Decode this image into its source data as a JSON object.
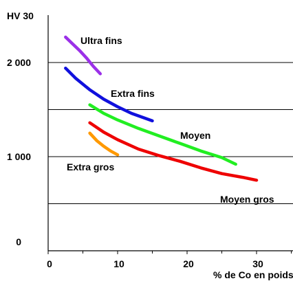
{
  "chart_data": {
    "type": "line",
    "title": "",
    "ylabel": "HV 30",
    "xlabel": "% de Co en poids",
    "xlim": [
      0,
      35
    ],
    "ylim": [
      0,
      2500
    ],
    "x_ticks": [
      {
        "value": 0,
        "label": "0"
      },
      {
        "value": 10,
        "label": "10"
      },
      {
        "value": 20,
        "label": "20"
      },
      {
        "value": 30,
        "label": "30"
      }
    ],
    "y_ticks": [
      {
        "value": 0,
        "label": "0"
      },
      {
        "value": 1000,
        "label": "1 000"
      },
      {
        "value": 2000,
        "label": "2 000"
      }
    ],
    "gridlines_y": [
      500,
      1000,
      1500,
      2000
    ],
    "grid": "horizontal",
    "legend": "none",
    "series": [
      {
        "name": "Ultra fins",
        "color": "#9b30e8",
        "points": [
          [
            2.5,
            2270
          ],
          [
            3.5,
            2200
          ],
          [
            4.5,
            2130
          ],
          [
            5.5,
            2050
          ],
          [
            6.5,
            1960
          ],
          [
            7.5,
            1880
          ]
        ]
      },
      {
        "name": "Extra fins",
        "color": "#1010dd",
        "points": [
          [
            2.5,
            1940
          ],
          [
            4,
            1830
          ],
          [
            6,
            1710
          ],
          [
            8,
            1610
          ],
          [
            10,
            1530
          ],
          [
            12,
            1460
          ],
          [
            15,
            1380
          ]
        ]
      },
      {
        "name": "Moyen",
        "color": "#22ee22",
        "points": [
          [
            6,
            1550
          ],
          [
            8,
            1460
          ],
          [
            10,
            1390
          ],
          [
            13,
            1300
          ],
          [
            16,
            1220
          ],
          [
            19,
            1140
          ],
          [
            22,
            1060
          ],
          [
            25,
            990
          ],
          [
            27,
            920
          ]
        ]
      },
      {
        "name": "Extra gros",
        "color": "#ff9900",
        "points": [
          [
            6,
            1250
          ],
          [
            7,
            1170
          ],
          [
            8,
            1110
          ],
          [
            9,
            1060
          ],
          [
            10,
            1020
          ]
        ]
      },
      {
        "name": "Moyen gros",
        "color": "#ee0000",
        "points": [
          [
            6,
            1360
          ],
          [
            8,
            1260
          ],
          [
            10,
            1180
          ],
          [
            13,
            1080
          ],
          [
            16,
            1010
          ],
          [
            19,
            950
          ],
          [
            22,
            880
          ],
          [
            25,
            820
          ],
          [
            28,
            780
          ],
          [
            30,
            750
          ]
        ]
      }
    ]
  }
}
